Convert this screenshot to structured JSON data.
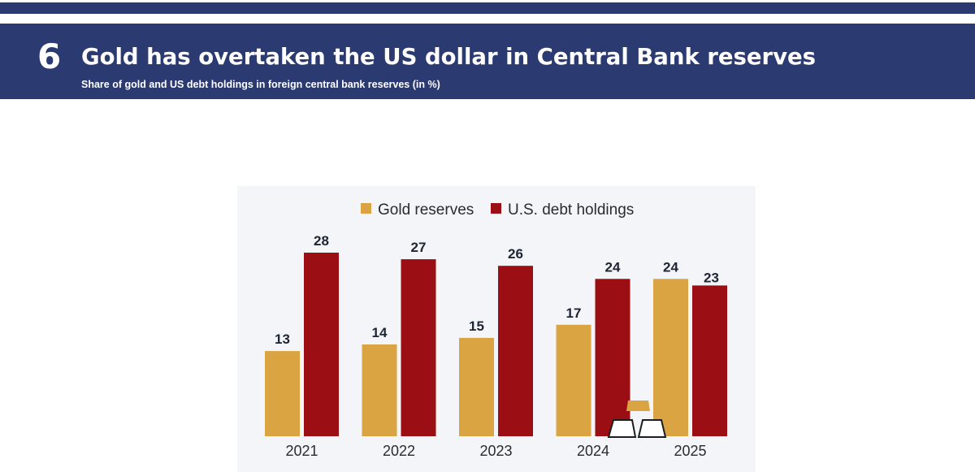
{
  "header": {
    "slide_number": "6",
    "title": "Gold has overtaken the US dollar in Central Bank reserves",
    "subtitle": "Share of gold and US debt holdings in foreign central bank reserves (in %)"
  },
  "colors": {
    "header_band": "#2c3a72",
    "gold": "#d9a441",
    "debt": "#9b0f14",
    "panel": "#f3f5f9"
  },
  "chart_data": {
    "type": "bar",
    "title": "Gold has overtaken the US dollar in Central Bank reserves",
    "subtitle": "Share of gold and US debt holdings in foreign central bank reserves (in %)",
    "xlabel": "",
    "ylabel": "",
    "legend_position": "top-center",
    "grid": false,
    "categories": [
      "2021",
      "2022",
      "2023",
      "2024",
      "2025"
    ],
    "series": [
      {
        "name": "Gold reserves",
        "color": "#d9a441",
        "values": [
          13,
          14,
          15,
          17,
          24
        ]
      },
      {
        "name": "U.S. debt holdings",
        "color": "#9b0f14",
        "values": [
          28,
          27,
          26,
          24,
          23
        ]
      }
    ],
    "ylim": [
      0,
      30
    ]
  }
}
